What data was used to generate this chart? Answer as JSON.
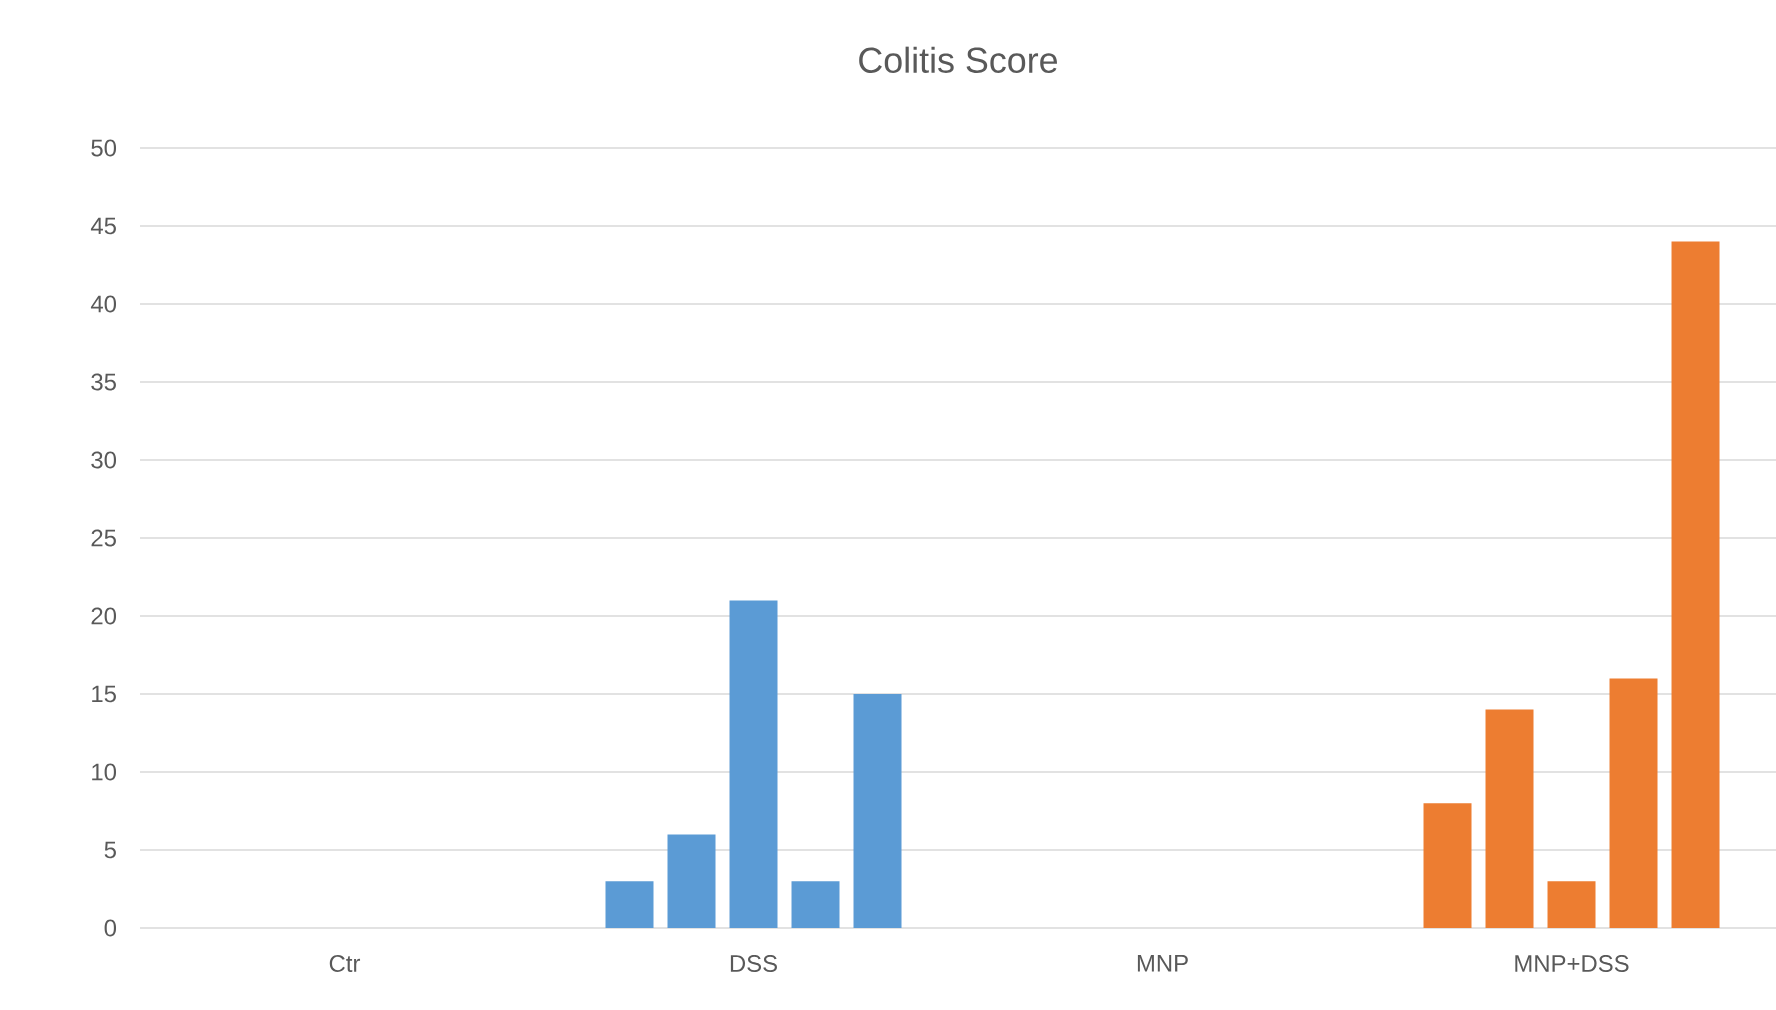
{
  "chart_data": {
    "type": "bar",
    "title": "Colitis Score",
    "categories": [
      "Ctr",
      "DSS",
      "MNP",
      "MNP+DSS"
    ],
    "series": [
      {
        "colors": [
          "#5b9bd5",
          "#5b9bd5",
          "#ed7d31",
          "#ed7d31"
        ],
        "values": [
          0,
          3,
          0,
          8
        ]
      },
      {
        "colors": [
          "#5b9bd5",
          "#5b9bd5",
          "#ed7d31",
          "#ed7d31"
        ],
        "values": [
          0,
          6,
          0,
          14
        ]
      },
      {
        "colors": [
          "#5b9bd5",
          "#5b9bd5",
          "#ed7d31",
          "#ed7d31"
        ],
        "values": [
          0,
          21,
          0,
          3
        ]
      },
      {
        "colors": [
          "#5b9bd5",
          "#5b9bd5",
          "#ed7d31",
          "#ed7d31"
        ],
        "values": [
          0,
          3,
          0,
          16
        ]
      },
      {
        "colors": [
          "#5b9bd5",
          "#5b9bd5",
          "#ed7d31",
          "#ed7d31"
        ],
        "values": [
          0,
          15,
          0,
          44
        ]
      }
    ],
    "ylim": [
      0,
      50
    ],
    "yticks": [
      0,
      5,
      10,
      15,
      20,
      25,
      30,
      35,
      40,
      45,
      50
    ],
    "grid": "y"
  }
}
